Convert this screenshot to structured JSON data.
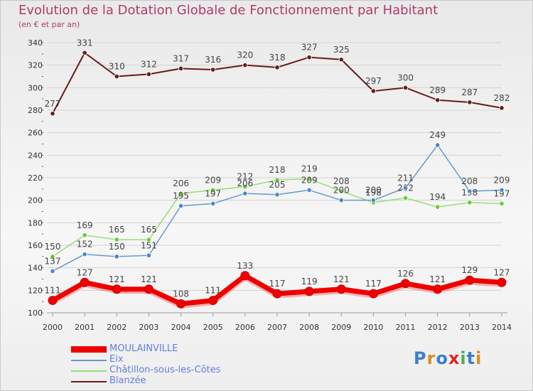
{
  "chart_data": {
    "type": "line",
    "title": "Evolution de la Dotation Globale de Fonctionnement par Habitant",
    "subtitle": "(en € et par an)",
    "categories": [
      "2000",
      "2001",
      "2002",
      "2003",
      "2004",
      "2005",
      "2006",
      "2007",
      "2008",
      "2009",
      "2010",
      "2011",
      "2012",
      "2013",
      "2014"
    ],
    "ylim": [
      100,
      340
    ],
    "yticks": [
      100,
      120,
      140,
      160,
      180,
      200,
      220,
      240,
      260,
      280,
      300,
      320,
      340
    ],
    "series": [
      {
        "name": "Blanzée",
        "color": "#6b1a1a",
        "marker": "#6b1a1a",
        "width": 2,
        "values": [
          277,
          331,
          310,
          312,
          317,
          316,
          320,
          318,
          327,
          325,
          297,
          300,
          289,
          287,
          282
        ]
      },
      {
        "name": "Châtillon-sous-les-Côtes",
        "color": "#99dd77",
        "marker": "#66cc33",
        "width": 1.5,
        "values": [
          150,
          169,
          165,
          165,
          206,
          209,
          212,
          218,
          219,
          208,
          198,
          202,
          194,
          198,
          197
        ]
      },
      {
        "name": "Eix",
        "color": "#6699cc",
        "marker": "#4a88cc",
        "width": 1.5,
        "values": [
          137,
          152,
          150,
          151,
          195,
          197,
          206,
          205,
          209,
          200,
          200,
          211,
          249,
          208,
          209
        ]
      },
      {
        "name": "MOULAINVILLE",
        "color": "#ee0000",
        "marker": "#ee0000",
        "width": 7,
        "values": [
          111,
          127,
          121,
          121,
          108,
          111,
          133,
          117,
          119,
          121,
          117,
          126,
          121,
          129,
          127
        ]
      }
    ],
    "legend": [
      {
        "name": "MOULAINVILLE",
        "color": "#ee0000"
      },
      {
        "name": "Eix",
        "color": "#6699cc"
      },
      {
        "name": "Châtillon-sous-les-Côtes",
        "color": "#99dd77"
      },
      {
        "name": "Blanzée",
        "color": "#6b1a1a"
      }
    ]
  },
  "logo": {
    "text": "Proxiti",
    "letter_colors": [
      "#3a7fd0",
      "#e08a1a",
      "#3a7fd0",
      "#e0261a",
      "#4caf50",
      "#3a7fd0",
      "#e08a1a"
    ]
  }
}
